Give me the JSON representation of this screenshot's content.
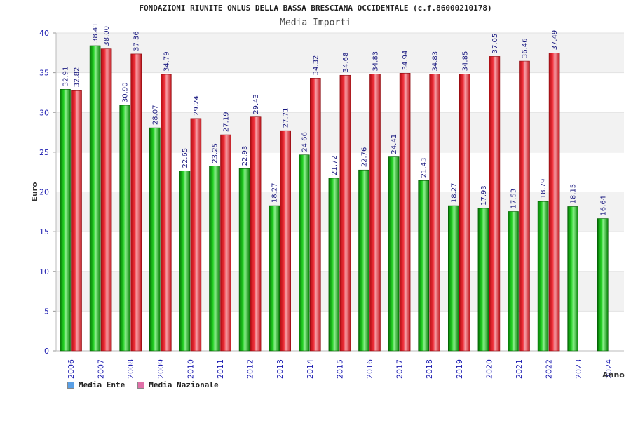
{
  "chart_data": {
    "type": "bar",
    "title": "FONDAZIONI RIUNITE ONLUS DELLA BASSA BRESCIANA OCCIDENTALE (c.f.86000210178)",
    "subtitle": "Media Importi",
    "xlabel": "Anno",
    "ylabel": "Euro",
    "ylim": [
      0,
      40
    ],
    "yticks": [
      0,
      5,
      10,
      15,
      20,
      25,
      30,
      35,
      40
    ],
    "grid": true,
    "legend_position": "bottom-left",
    "categories": [
      "2006",
      "2007",
      "2008",
      "2009",
      "2010",
      "2011",
      "2012",
      "2013",
      "2014",
      "2015",
      "2016",
      "2017",
      "2018",
      "2019",
      "2020",
      "2021",
      "2022",
      "2023",
      "2024"
    ],
    "series": [
      {
        "name": "Media Ente",
        "color": "#0aa00a",
        "values": [
          32.91,
          38.41,
          30.9,
          28.07,
          22.65,
          23.25,
          22.93,
          18.27,
          24.66,
          21.72,
          22.76,
          24.41,
          21.43,
          18.27,
          17.93,
          17.53,
          18.79,
          18.15,
          16.64
        ],
        "labels": [
          "32.91",
          "38.41",
          "30.90",
          "28.07",
          "22.65",
          "23.25",
          "22.93",
          "18.27",
          "24.66",
          "21.72",
          "22.76",
          "24.41",
          "21.43",
          "18.27",
          "17.93",
          "17.53",
          "18.79",
          "18.15",
          "16.64"
        ]
      },
      {
        "name": "Media Nazionale",
        "color": "#e81c24",
        "values": [
          32.82,
          38.0,
          37.36,
          34.79,
          29.24,
          27.19,
          29.43,
          27.71,
          34.32,
          34.68,
          34.83,
          34.94,
          34.83,
          34.85,
          37.05,
          36.46,
          37.49,
          null,
          null
        ],
        "labels": [
          "32.82",
          "38.00",
          "37.36",
          "34.79",
          "29.24",
          "27.19",
          "29.43",
          "27.71",
          "34.32",
          "34.68",
          "34.83",
          "34.94",
          "34.83",
          "34.85",
          "37.05",
          "36.46",
          "37.49",
          null,
          null
        ]
      }
    ]
  },
  "legend": {
    "ente": {
      "label": "Media Ente",
      "color": "#5aa0e6"
    },
    "nazionale": {
      "label": "Media Nazionale",
      "color": "#e070a8"
    }
  }
}
